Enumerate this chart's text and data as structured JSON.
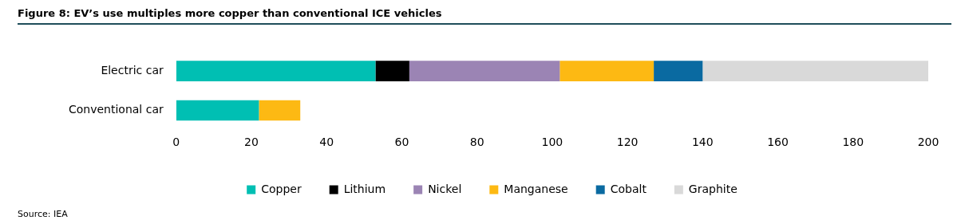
{
  "chart_data": {
    "type": "bar",
    "orientation": "horizontal",
    "stacked": true,
    "title": "Figure 8: EV’s use multiples more copper than conventional ICE vehicles",
    "categories": [
      "Electric car",
      "Conventional car"
    ],
    "series": [
      {
        "name": "Copper",
        "color": "#00bfb3",
        "values": [
          53,
          22
        ]
      },
      {
        "name": "Lithium",
        "color": "#000000",
        "values": [
          9,
          0
        ]
      },
      {
        "name": "Nickel",
        "color": "#9b84b4",
        "values": [
          40,
          0
        ]
      },
      {
        "name": "Manganese",
        "color": "#fdb913",
        "values": [
          25,
          11
        ]
      },
      {
        "name": "Cobalt",
        "color": "#0a6aa1",
        "values": [
          13,
          0
        ]
      },
      {
        "name": "Graphite",
        "color": "#d9d9d9",
        "values": [
          60,
          0
        ]
      }
    ],
    "xlim": [
      0,
      200
    ],
    "xticks": [
      0,
      20,
      40,
      60,
      80,
      100,
      120,
      140,
      160,
      180,
      200
    ],
    "grid": false,
    "legend": "bottom",
    "annotations": [
      "Source: IEA"
    ]
  }
}
